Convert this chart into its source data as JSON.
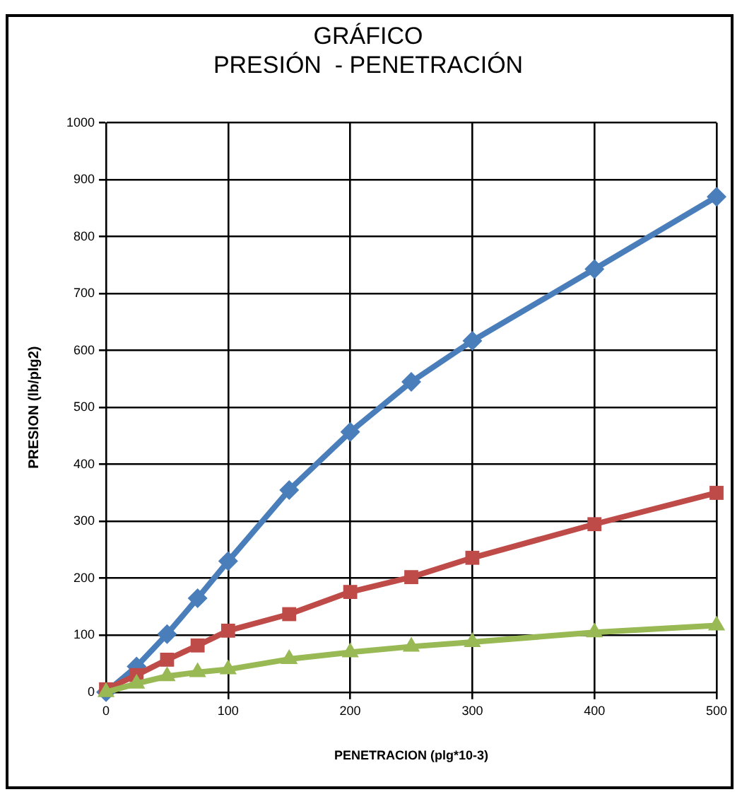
{
  "chart_data": {
    "type": "line",
    "title": [
      "GRÁFICO",
      "PRESIÓN  - PENETRACIÓN"
    ],
    "xlabel": "PENETRACION (plg*10-3)",
    "ylabel": "PRESION (lb/plg2)",
    "x": [
      0,
      25,
      50,
      75,
      100,
      150,
      200,
      250,
      300,
      400,
      500
    ],
    "series": [
      {
        "color": "#4a7ebb",
        "marker": "diamond",
        "values": [
          0,
          45,
          102,
          165,
          230,
          355,
          457,
          545,
          617,
          743,
          870
        ]
      },
      {
        "color": "#be4b48",
        "marker": "square",
        "values": [
          5,
          30,
          57,
          82,
          108,
          137,
          176,
          202,
          236,
          295,
          350
        ]
      },
      {
        "color": "#98b954",
        "marker": "triangle",
        "values": [
          0,
          15,
          28,
          35,
          40,
          58,
          70,
          80,
          88,
          105,
          117
        ]
      }
    ],
    "xlim": [
      0,
      500
    ],
    "xticks": [
      0,
      100,
      200,
      300,
      400,
      500
    ],
    "ylim": [
      0,
      1000
    ],
    "yticks": [
      0,
      100,
      200,
      300,
      400,
      500,
      600,
      700,
      800,
      900,
      1000
    ],
    "grid": true,
    "legend": false
  }
}
